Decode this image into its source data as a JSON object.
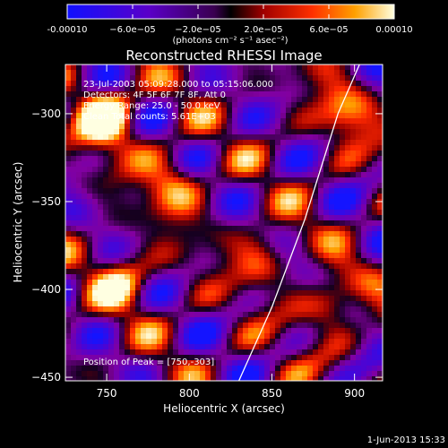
{
  "chart_data": {
    "type": "heatmap",
    "title": "Reconstructed RHESSI Image",
    "xlabel": "Heliocentric X (arcsec)",
    "ylabel": "Heliocentric Y (arcsec)",
    "xlim": [
      725,
      917
    ],
    "ylim": [
      -452,
      -272
    ],
    "xticks": [
      750,
      800,
      850,
      900
    ],
    "yticks": [
      -300,
      -350,
      -400,
      -450
    ],
    "colorbar": {
      "range": [
        -0.0001,
        0.0001
      ],
      "tick_values": [
        -0.0001,
        -6e-05,
        -2e-05,
        2e-05,
        6e-05,
        0.0001
      ],
      "tick_labels": [
        "-0.00010",
        "−6.0e−05",
        "−2.0e−05",
        "2.0e−05",
        "6.0e−05",
        "0.00010"
      ],
      "unit_label": "(photons cm⁻² s⁻¹ asec⁻²)",
      "colors": [
        "#1010ff",
        "#5a00c8",
        "#8a00a0",
        "#000000",
        "#a00000",
        "#ff2000",
        "#ffa000",
        "#ffffe0"
      ]
    },
    "annotations": {
      "time": "23-Jul-2003 05:09:28.000 to 05:15:06.000",
      "detectors": "Detectors: 4F 5F 6F 7F 8F, Att 0",
      "energy": "Energy Range: 25.0 - 50.0 keV",
      "clean": "Clean    Total counts: 5.61E+03",
      "peak": "Position of Peak = [750,-303]"
    },
    "peaks": [
      {
        "x": 750,
        "y": -303,
        "v": 1.0
      },
      {
        "x": 790,
        "y": -340,
        "v": 0.55
      },
      {
        "x": 760,
        "y": -395,
        "v": 0.6
      },
      {
        "x": 845,
        "y": -380,
        "v": 0.45
      },
      {
        "x": 885,
        "y": -410,
        "v": 0.55
      },
      {
        "x": 895,
        "y": -300,
        "v": 0.5
      }
    ],
    "limb_curve": [
      [
        830,
        -452
      ],
      [
        850,
        -410
      ],
      [
        870,
        -360
      ],
      [
        890,
        -300
      ],
      [
        903,
        -272
      ]
    ],
    "timestamp": "1-Jun-2013 15:33"
  },
  "colors": {
    "background": "#000000",
    "text": "#ffffff"
  }
}
